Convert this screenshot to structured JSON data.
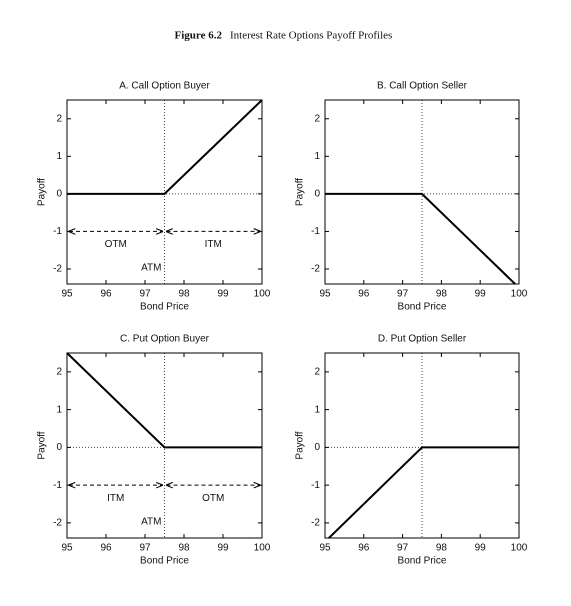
{
  "figure": {
    "label": "Figure 6.2",
    "title": "Interest Rate Options Payoff Profiles"
  },
  "chart_data": [
    {
      "type": "line",
      "title": "A. Call Option Buyer",
      "x_label": "Bond Price",
      "y_label": "Payoff",
      "x": [
        95,
        97.5,
        100
      ],
      "values": [
        0,
        0,
        2.5
      ],
      "color": "#000000",
      "xlim": [
        95,
        100
      ],
      "ylim": [
        -2.4,
        2.5
      ],
      "xticks": [
        95,
        96,
        97,
        98,
        99,
        100
      ],
      "yticks": [
        -2,
        -1,
        0,
        1,
        2
      ],
      "reference_x": 97.5,
      "reference_y": 0,
      "region_y": -1,
      "regions": [
        {
          "label": "OTM",
          "from": 95,
          "to": 97.5
        },
        {
          "label": "ITM",
          "from": 97.5,
          "to": 100
        }
      ],
      "reference_x_label": "ATM"
    },
    {
      "type": "line",
      "title": "B. Call Option Seller",
      "x_label": "Bond Price",
      "y_label": "Payoff",
      "x": [
        95,
        97.5,
        99.9
      ],
      "values": [
        0,
        0,
        -2.4
      ],
      "color": "#000000",
      "xlim": [
        95,
        100
      ],
      "ylim": [
        -2.4,
        2.5
      ],
      "xticks": [
        95,
        96,
        97,
        98,
        99,
        100
      ],
      "yticks": [
        -2,
        -1,
        0,
        1,
        2
      ],
      "reference_x": 97.5,
      "reference_y": 0
    },
    {
      "type": "line",
      "title": "C. Put Option Buyer",
      "x_label": "Bond Price",
      "y_label": "Payoff",
      "x": [
        95,
        97.5,
        100
      ],
      "values": [
        2.5,
        0,
        0
      ],
      "color": "#000000",
      "xlim": [
        95,
        100
      ],
      "ylim": [
        -2.4,
        2.5
      ],
      "xticks": [
        95,
        96,
        97,
        98,
        99,
        100
      ],
      "yticks": [
        -2,
        -1,
        0,
        1,
        2
      ],
      "reference_x": 97.5,
      "reference_y": 0,
      "region_y": -1,
      "regions": [
        {
          "label": "ITM",
          "from": 95,
          "to": 97.5
        },
        {
          "label": "OTM",
          "from": 97.5,
          "to": 100
        }
      ],
      "reference_x_label": "ATM"
    },
    {
      "type": "line",
      "title": "D. Put Option Seller",
      "x_label": "Bond Price",
      "y_label": "Payoff",
      "x": [
        95.1,
        97.5,
        100
      ],
      "values": [
        -2.4,
        0,
        0
      ],
      "color": "#000000",
      "xlim": [
        95,
        100
      ],
      "ylim": [
        -2.4,
        2.5
      ],
      "xticks": [
        95,
        96,
        97,
        98,
        99,
        100
      ],
      "yticks": [
        -2,
        -1,
        0,
        1,
        2
      ],
      "reference_x": 97.5,
      "reference_y": 0
    }
  ]
}
